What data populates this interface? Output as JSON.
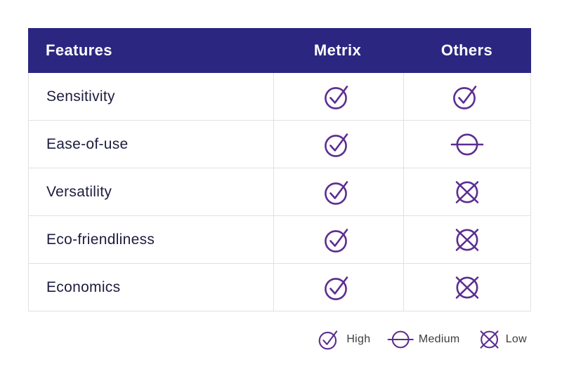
{
  "table": {
    "columns": [
      "Features",
      "Metrix",
      "Others"
    ],
    "rows": [
      {
        "feature": "Sensitivity",
        "metrix": "high",
        "others": "high"
      },
      {
        "feature": "Ease-of-use",
        "metrix": "high",
        "others": "medium"
      },
      {
        "feature": "Versatility",
        "metrix": "high",
        "others": "low"
      },
      {
        "feature": "Eco-friendliness",
        "metrix": "high",
        "others": "low"
      },
      {
        "feature": "Economics",
        "metrix": "high",
        "others": "low"
      }
    ]
  },
  "legend": {
    "items": [
      {
        "icon": "high",
        "label": "High"
      },
      {
        "icon": "medium",
        "label": "Medium"
      },
      {
        "icon": "low",
        "label": "Low"
      }
    ]
  },
  "icons": {
    "high": "check-circle-icon",
    "medium": "dash-circle-icon",
    "low": "cross-circle-icon"
  },
  "colors": {
    "header_bg": "#2B2680",
    "header_text": "#FFFFFF",
    "icon_purple": "#5C2D91",
    "feature_text": "#1C1C3E",
    "legend_text": "#3D3D3D",
    "grid_border": "#E1E1E1"
  },
  "chart_data": {
    "type": "table",
    "title": "",
    "columns": [
      "Features",
      "Metrix",
      "Others"
    ],
    "rows": [
      [
        "Sensitivity",
        "High",
        "High"
      ],
      [
        "Ease-of-use",
        "High",
        "Medium"
      ],
      [
        "Versatility",
        "High",
        "Low"
      ],
      [
        "Eco-friendliness",
        "High",
        "Low"
      ],
      [
        "Economics",
        "High",
        "Low"
      ]
    ],
    "legend": [
      "High",
      "Medium",
      "Low"
    ],
    "legend_position": "bottom-right",
    "rating_scale": {
      "high": "check-circle",
      "medium": "dash-circle",
      "low": "cross-circle"
    }
  }
}
